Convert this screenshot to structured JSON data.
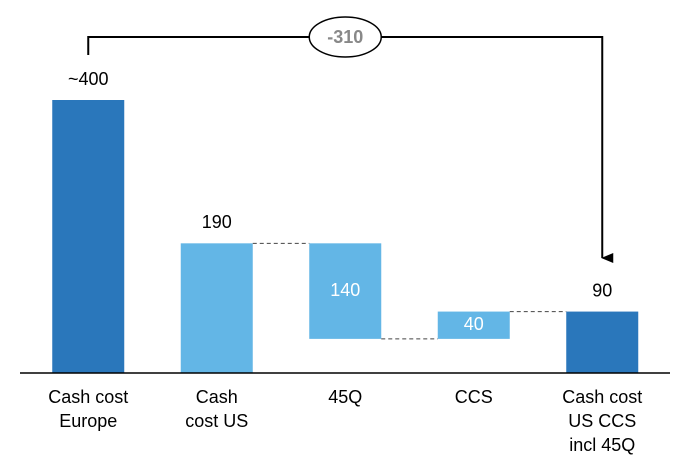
{
  "chart_data": {
    "type": "waterfall",
    "categories": [
      [
        "Cash cost",
        "Europe"
      ],
      [
        "Cash",
        "cost US"
      ],
      [
        "45Q"
      ],
      [
        "CCS"
      ],
      [
        "Cash cost",
        "US CCS",
        "incl 45Q"
      ]
    ],
    "values": [
      400,
      190,
      -140,
      40,
      90
    ],
    "value_labels": [
      "~400",
      "190",
      "140",
      "40",
      "90"
    ],
    "measure": [
      "absolute",
      "absolute",
      "relative",
      "relative",
      "absolute"
    ],
    "colors": [
      "#2a77bb",
      "#63b6e6",
      "#63b6e6",
      "#63b6e6",
      "#2a77bb"
    ],
    "ylim": [
      0,
      400
    ],
    "annotation": "-310"
  }
}
